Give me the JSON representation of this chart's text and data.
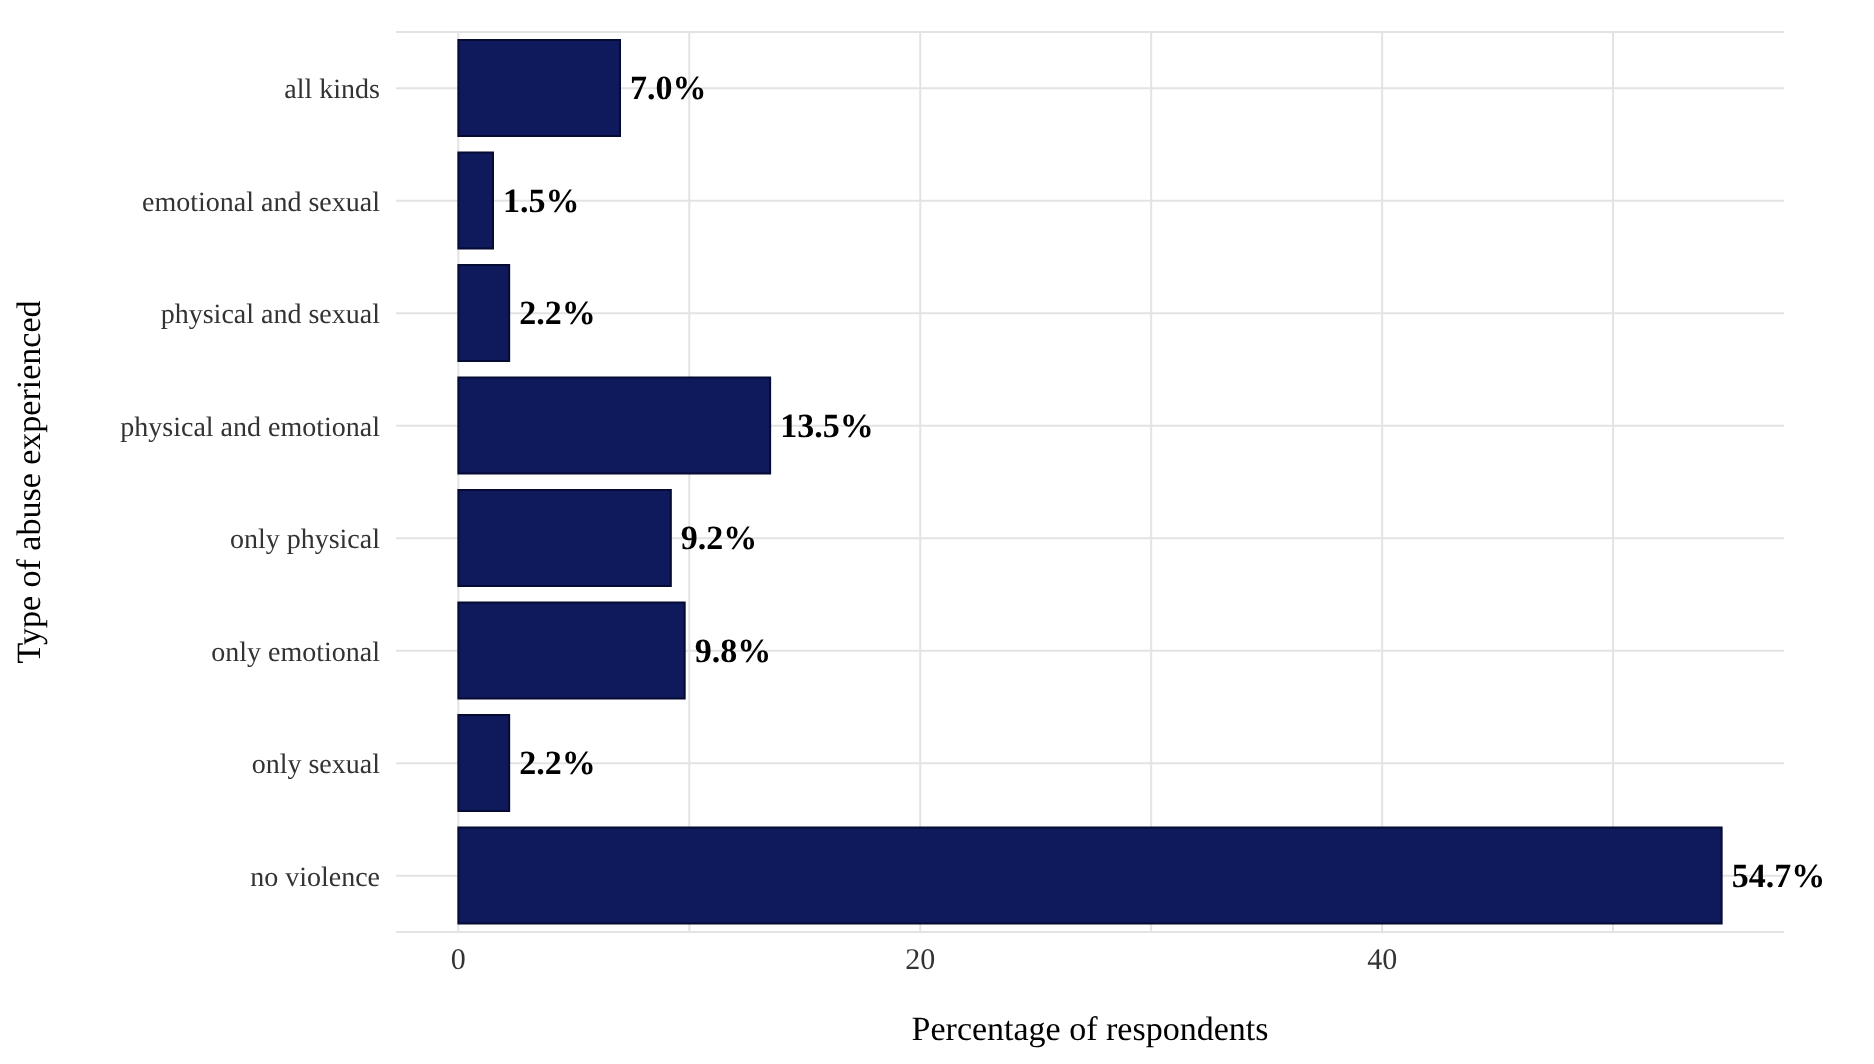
{
  "chart_data": {
    "type": "bar",
    "orientation": "horizontal",
    "xlabel": "Percentage of respondents",
    "ylabel": "Type of abuse experienced",
    "categories": [
      "all kinds",
      "emotional and sexual",
      "physical and sexual",
      "physical and emotional",
      "only physical",
      "only emotional",
      "only sexual",
      "no violence"
    ],
    "values": [
      7.0,
      1.5,
      2.2,
      13.5,
      9.2,
      9.8,
      2.2,
      54.7
    ],
    "value_labels": [
      "7.0%",
      "1.5%",
      "2.2%",
      "13.5%",
      "9.2%",
      "9.8%",
      "2.2%",
      "54.7%"
    ],
    "color": "#0f1a5c",
    "xlim": [
      -2.7,
      57.4
    ],
    "xticks": [
      0,
      {
        "value": 10,
        "label": null
      },
      20,
      {
        "value": 30,
        "label": null
      },
      40,
      {
        "value": 50,
        "label": null
      }
    ],
    "grid": true
  }
}
